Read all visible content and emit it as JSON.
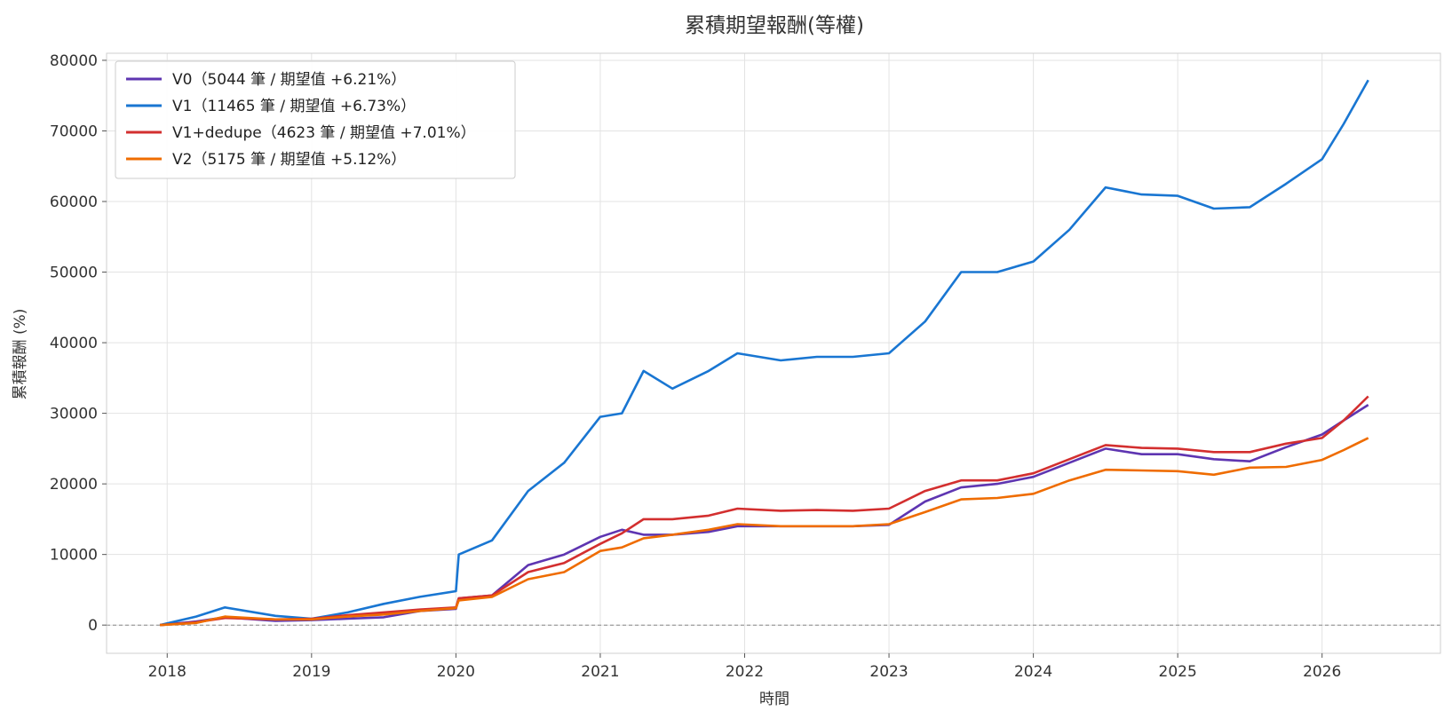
{
  "chart_data": {
    "type": "line",
    "title": "累積期望報酬(等權)",
    "xlabel": "時間",
    "ylabel": "累積報酬 (%)",
    "x_ticks": [
      "2018",
      "2019",
      "2020",
      "2021",
      "2022",
      "2023",
      "2024",
      "2025",
      "2026"
    ],
    "y_ticks": [
      "0",
      "10000",
      "20000",
      "30000",
      "40000",
      "50000",
      "60000",
      "70000",
      "80000"
    ],
    "xlim": [
      2017.58,
      2026.82
    ],
    "ylim": [
      -4000,
      81000
    ],
    "grid": true,
    "zero_line": true,
    "legend_position": "upper-left",
    "x": [
      2017.95,
      2018.2,
      2018.4,
      2018.75,
      2019.0,
      2019.25,
      2019.5,
      2019.75,
      2020.0,
      2020.02,
      2020.25,
      2020.5,
      2020.75,
      2021.0,
      2021.15,
      2021.3,
      2021.5,
      2021.75,
      2021.95,
      2022.25,
      2022.5,
      2022.75,
      2023.0,
      2023.25,
      2023.5,
      2023.75,
      2024.0,
      2024.25,
      2024.5,
      2024.75,
      2025.0,
      2025.25,
      2025.5,
      2025.75,
      2026.0,
      2026.15,
      2026.32
    ],
    "series": [
      {
        "name": "V0（5044 筆 / 期望值 +6.21%）",
        "color": "#5e35b1",
        "values": [
          0,
          500,
          1100,
          600,
          700,
          900,
          1100,
          2000,
          2300,
          3800,
          4200,
          8500,
          10000,
          12500,
          13500,
          12800,
          12800,
          13200,
          14000,
          14000,
          14000,
          14000,
          14200,
          17500,
          19500,
          20000,
          21000,
          23000,
          25000,
          24200,
          24200,
          23500,
          23200,
          25200,
          27000,
          29000,
          31200
        ]
      },
      {
        "name": "V1（11465 筆 / 期望值 +6.73%）",
        "color": "#1976d2",
        "values": [
          0,
          1200,
          2500,
          1300,
          900,
          1800,
          3000,
          4000,
          4800,
          10000,
          12000,
          19000,
          23000,
          29500,
          30000,
          36000,
          33500,
          36000,
          38500,
          37500,
          38000,
          38000,
          38500,
          43000,
          50000,
          50000,
          51500,
          56000,
          62000,
          61000,
          60800,
          59000,
          59200,
          62500,
          66000,
          71000,
          77200
        ]
      },
      {
        "name": "V1+dedupe（4623 筆 / 期望值 +7.01%）",
        "color": "#d32f2f",
        "values": [
          0,
          400,
          1000,
          800,
          900,
          1400,
          1800,
          2200,
          2500,
          3800,
          4200,
          7500,
          8800,
          11500,
          13000,
          15000,
          15000,
          15500,
          16500,
          16200,
          16300,
          16200,
          16500,
          19000,
          20500,
          20500,
          21500,
          23500,
          25500,
          25100,
          25000,
          24500,
          24500,
          25700,
          26500,
          29000,
          32400
        ]
      },
      {
        "name": "V2（5175 筆 / 期望值 +5.12%）",
        "color": "#ef6c00",
        "values": [
          0,
          300,
          1200,
          800,
          800,
          1200,
          1500,
          2000,
          2400,
          3500,
          4000,
          6500,
          7500,
          10500,
          11000,
          12300,
          12800,
          13500,
          14300,
          14000,
          14000,
          14000,
          14300,
          16000,
          17800,
          18000,
          18600,
          20500,
          22000,
          21900,
          21800,
          21300,
          22300,
          22400,
          23400,
          24800,
          26500
        ]
      }
    ]
  }
}
